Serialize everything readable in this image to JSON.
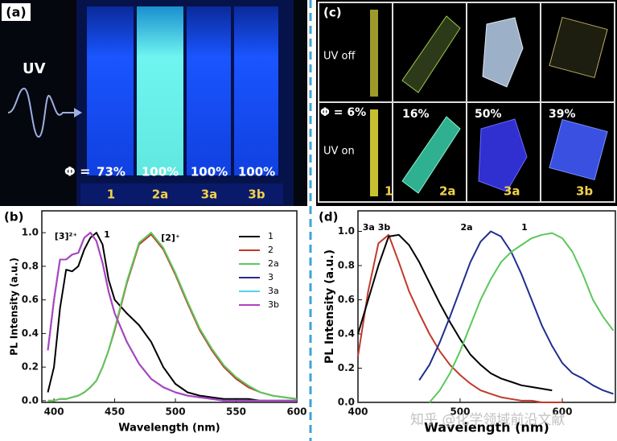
{
  "panels": {
    "a": {
      "label": "(a)",
      "uv": "UV",
      "phi_label": "Φ =",
      "yields": [
        "73%",
        "100%",
        "100%",
        "100%"
      ],
      "samples": [
        "1",
        "2a",
        "3a",
        "3b"
      ]
    },
    "c": {
      "label": "(c)",
      "rows": [
        "UV off",
        "UV on"
      ],
      "phi_first": "Φ = 6%",
      "yields": [
        "16%",
        "50%",
        "39%"
      ],
      "samples": [
        "1",
        "2a",
        "3a",
        "3b"
      ]
    }
  },
  "chart_data": [
    {
      "type": "line",
      "panel_label": "(b)",
      "xlabel": "Wavelength (nm)",
      "ylabel": "PL Intensity (a.u.)",
      "xlim": [
        390,
        600
      ],
      "ylim": [
        -0.01,
        1.13
      ],
      "xticks": [
        400,
        450,
        500,
        550,
        600
      ],
      "yticks": [
        {
          "value": 0,
          "label": "0.0"
        },
        0.2,
        0.4,
        0.6,
        0.8,
        {
          "value": 1,
          "label": "1.0"
        }
      ],
      "legend": "upper right",
      "annotations": [
        "[3]²⁺",
        "1",
        "[2]⁺"
      ],
      "x": [
        395,
        400,
        405,
        410,
        415,
        420,
        425,
        430,
        435,
        440,
        445,
        450,
        460,
        470,
        480,
        490,
        500,
        510,
        520,
        530,
        540,
        550,
        560,
        570,
        580,
        590,
        600
      ],
      "series": [
        {
          "name": "1",
          "color": "#000000",
          "values": [
            0.05,
            0.2,
            0.55,
            0.78,
            0.77,
            0.8,
            0.9,
            0.97,
            1.0,
            0.93,
            0.72,
            0.6,
            0.52,
            0.45,
            0.35,
            0.2,
            0.1,
            0.05,
            0.03,
            0.02,
            0.01,
            0.01,
            0.01,
            0,
            0,
            0,
            0
          ]
        },
        {
          "name": "2",
          "color": "#c0392b",
          "values": [
            0,
            0,
            0.01,
            0.01,
            0.02,
            0.03,
            0.05,
            0.08,
            0.12,
            0.2,
            0.3,
            0.42,
            0.7,
            0.93,
            0.99,
            0.9,
            0.75,
            0.58,
            0.42,
            0.3,
            0.2,
            0.13,
            0.08,
            0.05,
            0.03,
            0.02,
            0.01
          ]
        },
        {
          "name": "2a",
          "color": "#5cc85c",
          "values": [
            0,
            0,
            0.01,
            0.01,
            0.02,
            0.03,
            0.05,
            0.08,
            0.12,
            0.2,
            0.3,
            0.43,
            0.71,
            0.94,
            1.0,
            0.91,
            0.76,
            0.59,
            0.43,
            0.31,
            0.21,
            0.14,
            0.09,
            0.05,
            0.03,
            0.02,
            0.01
          ]
        },
        {
          "name": "3",
          "color": "#2a2a8c",
          "values": [
            0.3,
            0.6,
            0.84,
            0.84,
            0.87,
            0.88,
            0.97,
            1.0,
            0.95,
            0.82,
            0.65,
            0.52,
            0.35,
            0.22,
            0.13,
            0.08,
            0.05,
            0.03,
            0.02,
            0.01,
            0,
            0,
            0,
            0,
            0,
            0,
            0
          ]
        },
        {
          "name": "3a",
          "color": "#4fd3e8",
          "values": [
            0.3,
            0.6,
            0.84,
            0.84,
            0.87,
            0.88,
            0.97,
            1.0,
            0.95,
            0.82,
            0.65,
            0.52,
            0.35,
            0.22,
            0.13,
            0.08,
            0.05,
            0.03,
            0.02,
            0.01,
            0,
            0,
            0,
            0,
            0,
            0,
            0
          ]
        },
        {
          "name": "3b",
          "color": "#b040c0",
          "values": [
            0.3,
            0.6,
            0.84,
            0.84,
            0.87,
            0.88,
            0.97,
            1.0,
            0.95,
            0.82,
            0.65,
            0.52,
            0.35,
            0.22,
            0.13,
            0.08,
            0.05,
            0.03,
            0.02,
            0.01,
            0,
            0,
            0,
            0,
            0,
            0,
            0
          ]
        }
      ]
    },
    {
      "type": "line",
      "panel_label": "(d)",
      "xlabel": "Wavelength (nm)",
      "ylabel": "PL Intensity (a.u.)",
      "xlim": [
        400,
        652
      ],
      "ylim": [
        0,
        1.12
      ],
      "xticks": [
        400,
        500,
        600
      ],
      "yticks": [
        {
          "value": 0,
          "label": "0.0"
        },
        0.2,
        0.4,
        0.6,
        0.8,
        {
          "value": 1,
          "label": "1.0"
        }
      ],
      "annotations": [
        "3a 3b",
        "2a",
        "1"
      ],
      "x": [
        400,
        410,
        420,
        430,
        440,
        450,
        460,
        470,
        480,
        490,
        500,
        510,
        520,
        530,
        540,
        550,
        560,
        570,
        580,
        590,
        600,
        610,
        620,
        630,
        640,
        650
      ],
      "series": [
        {
          "color": "#c0392b",
          "values": [
            0.27,
            0.65,
            0.93,
            0.98,
            0.82,
            0.65,
            0.52,
            0.4,
            0.3,
            0.22,
            0.16,
            0.11,
            0.07,
            0.05,
            0.03,
            0.02,
            0.01,
            0.01,
            0,
            0,
            0,
            null,
            null,
            null,
            null,
            null
          ]
        },
        {
          "color": "#000000",
          "values": [
            0.4,
            0.6,
            0.8,
            0.97,
            0.98,
            0.92,
            0.82,
            0.7,
            0.58,
            0.47,
            0.37,
            0.28,
            0.22,
            0.17,
            0.14,
            0.12,
            0.1,
            0.09,
            0.08,
            0.07,
            null,
            null,
            null,
            null,
            null,
            null
          ]
        },
        {
          "color": "#1f2f8f",
          "values": [
            null,
            null,
            null,
            null,
            null,
            null,
            0.13,
            0.22,
            0.35,
            0.5,
            0.66,
            0.82,
            0.94,
            1.0,
            0.97,
            0.88,
            0.75,
            0.6,
            0.45,
            0.33,
            0.23,
            0.17,
            0.14,
            0.1,
            0.07,
            0.05
          ]
        },
        {
          "color": "#5cc85c",
          "values": [
            null,
            null,
            null,
            null,
            null,
            null,
            null,
            0,
            0.07,
            0.17,
            0.3,
            0.45,
            0.6,
            0.72,
            0.82,
            0.88,
            0.92,
            0.96,
            0.98,
            0.99,
            0.96,
            0.88,
            0.75,
            0.6,
            0.5,
            0.42
          ]
        }
      ]
    }
  ],
  "watermark": "知乎 @化学领域前沿文献"
}
